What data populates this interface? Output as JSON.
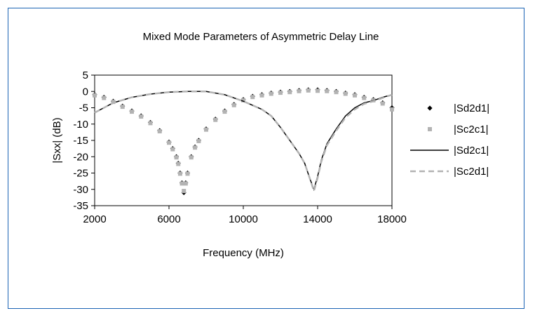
{
  "chart_data": {
    "type": "line",
    "title": "Mixed Mode Parameters of Asymmetric Delay Line",
    "xlabel": "Frequency (MHz)",
    "ylabel": "|Sxx| (dB)",
    "xlim": [
      2000,
      18000
    ],
    "ylim": [
      -35,
      5
    ],
    "xticks": [
      2000,
      6000,
      10000,
      14000,
      18000
    ],
    "yticks": [
      5,
      0,
      -5,
      -10,
      -15,
      -20,
      -25,
      -30,
      -35
    ],
    "grid": false,
    "legend_position": "right",
    "series": [
      {
        "name": "|Sd2d1|",
        "style": "diamond-markers",
        "color": "#000000",
        "x": [
          2000,
          2500,
          3000,
          3500,
          4000,
          4500,
          5000,
          5500,
          6000,
          6200,
          6400,
          6500,
          6600,
          6700,
          6800,
          6900,
          7000,
          7200,
          7400,
          7600,
          8000,
          8500,
          9000,
          9500,
          10000,
          10500,
          11000,
          11500,
          12000,
          12500,
          13000,
          13500,
          14000,
          14500,
          15000,
          15500,
          16000,
          16500,
          17000,
          17500,
          18000
        ],
        "y": [
          -1,
          -1.8,
          -3,
          -4.5,
          -6,
          -7.5,
          -9.5,
          -12,
          -15.5,
          -17.5,
          -20,
          -22,
          -25,
          -28,
          -31,
          -28,
          -25,
          -20,
          -17,
          -15,
          -11.5,
          -8.5,
          -6,
          -4,
          -2.5,
          -1.5,
          -1,
          -0.5,
          -0.2,
          0,
          0.3,
          0.5,
          0.5,
          0.3,
          0,
          -0.5,
          -1,
          -1.8,
          -2.5,
          -3.5,
          -5
        ]
      },
      {
        "name": "|Sc2c1|",
        "style": "square-markers",
        "color": "#b3b3b3",
        "x": [
          2000,
          2500,
          3000,
          3500,
          4000,
          4500,
          5000,
          5500,
          6000,
          6200,
          6400,
          6500,
          6600,
          6700,
          6800,
          6900,
          7000,
          7200,
          7400,
          7600,
          8000,
          8500,
          9000,
          9500,
          10000,
          10500,
          11000,
          11500,
          12000,
          12500,
          13000,
          13500,
          14000,
          14500,
          15000,
          15500,
          16000,
          16500,
          17000,
          17500,
          18000
        ],
        "y": [
          -1.2,
          -2,
          -3.2,
          -4.7,
          -6.2,
          -7.7,
          -9.7,
          -12.2,
          -15.7,
          -17.7,
          -20.2,
          -22.2,
          -25.2,
          -28.2,
          -30.5,
          -28.2,
          -25.2,
          -20.2,
          -17.2,
          -15.2,
          -11.7,
          -8.7,
          -6.2,
          -4.2,
          -2.7,
          -1.7,
          -1.2,
          -0.7,
          -0.4,
          -0.2,
          0.1,
          0.3,
          0.2,
          0.1,
          -0.2,
          -0.7,
          -1.2,
          -2,
          -2.7,
          -3.7,
          -5.5
        ]
      },
      {
        "name": "|Sd2c1|",
        "style": "solid-line",
        "color": "#000000",
        "x": [
          2000,
          3000,
          4000,
          5000,
          6000,
          7000,
          8000,
          9000,
          10000,
          11000,
          11500,
          12000,
          12500,
          13000,
          13300,
          13600,
          13800,
          14000,
          14200,
          14500,
          15000,
          15500,
          16000,
          16500,
          17000,
          17500,
          18000
        ],
        "y": [
          -6.5,
          -3.5,
          -1.8,
          -0.8,
          -0.2,
          0,
          0,
          -1,
          -3,
          -5.5,
          -7.5,
          -11,
          -15,
          -19,
          -22,
          -27,
          -30,
          -26,
          -21,
          -16,
          -11.5,
          -7.5,
          -5,
          -3.5,
          -2.8,
          -1.8,
          -1
        ]
      },
      {
        "name": "|Sc2d1|",
        "style": "dashed-line",
        "color": "#b3b3b3",
        "x": [
          2000,
          3000,
          4000,
          5000,
          6000,
          7000,
          8000,
          9000,
          10000,
          11000,
          11500,
          12000,
          12500,
          13000,
          13300,
          13600,
          13800,
          14000,
          14200,
          14500,
          15000,
          15500,
          16000,
          16500,
          17000,
          17500,
          18000
        ],
        "y": [
          -6.5,
          -3.5,
          -1.8,
          -0.8,
          -0.2,
          0,
          0,
          -1,
          -3,
          -5.5,
          -7.5,
          -11,
          -15,
          -19,
          -22,
          -27,
          -30.5,
          -26.5,
          -21.5,
          -16.5,
          -12,
          -8,
          -5.5,
          -3.8,
          -3,
          -2,
          -1
        ]
      }
    ]
  }
}
